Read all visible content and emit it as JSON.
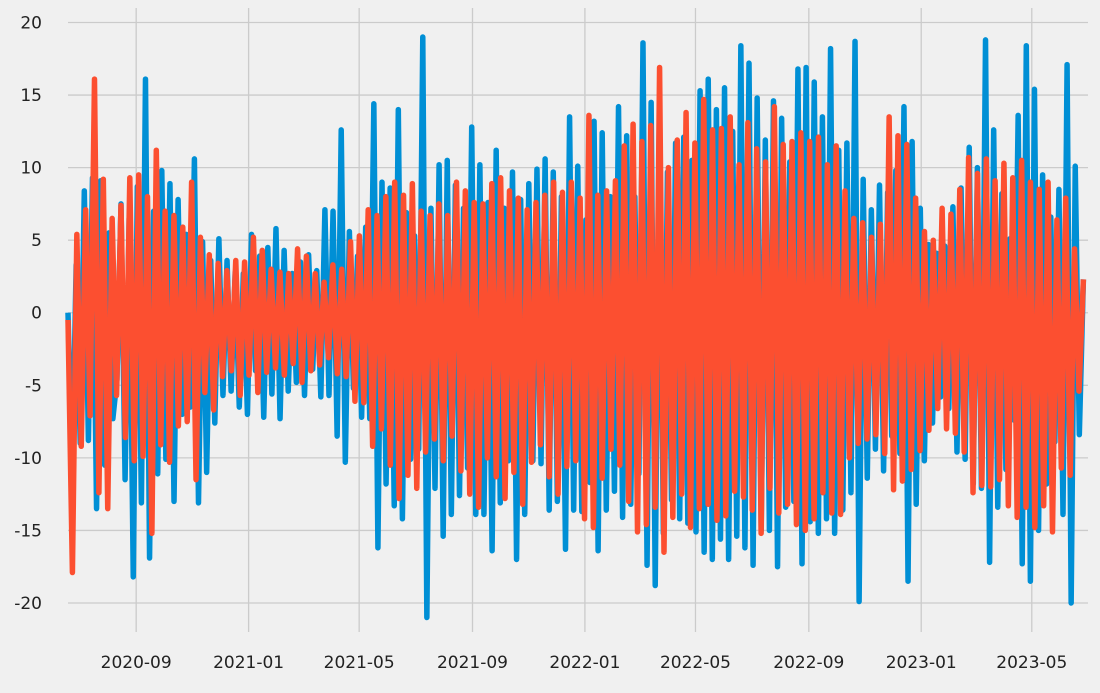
{
  "chart_data": {
    "type": "line",
    "title": "",
    "xlabel": "",
    "ylabel": "",
    "x_range": [
      "2020-06-19",
      "2023-07-01"
    ],
    "ylim": [
      -22.0,
      21.0
    ],
    "yticks": [
      20,
      15,
      10,
      5,
      0,
      -5,
      -10,
      -15,
      -20
    ],
    "ytick_labels": [
      "20",
      "15",
      "10",
      "5",
      "0",
      "-5",
      "-10",
      "-15",
      "-20"
    ],
    "xticks": [
      "2020-09-01",
      "2021-01-01",
      "2021-05-01",
      "2021-09-01",
      "2022-01-01",
      "2022-05-01",
      "2022-09-01",
      "2023-01-01",
      "2023-05-01"
    ],
    "xtick_labels": [
      "2020-09",
      "2021-01",
      "2021-05",
      "2021-09",
      "2022-01",
      "2022-05",
      "2022-09",
      "2023-01",
      "2023-05"
    ],
    "grid": true,
    "legend": "none",
    "series": [
      {
        "color": "#008fd5",
        "start": "2020-06-19",
        "end": "2023-06-26",
        "frequency": "daily",
        "values": [
          0.0,
          -11.5,
          3.3,
          -9.0,
          8.4,
          -8.8,
          9.3,
          -13.5,
          9.1,
          -10.5,
          5.5,
          -7.3,
          -4.6,
          7.5,
          -11.5,
          6.5,
          -18.2,
          8.7,
          -13.1,
          16.1,
          -16.9,
          7.0,
          -11.1,
          9.8,
          -10.1,
          8.9,
          -13.0,
          7.8,
          -7.0,
          5.4,
          -6.5,
          10.6,
          -13.1,
          4.9,
          -11.0,
          3.6,
          -7.6,
          5.1,
          -5.7,
          3.6,
          -5.4,
          2.8,
          -6.5,
          2.7,
          -7.0,
          5.4,
          -4.0,
          3.9,
          -7.2,
          4.5,
          -5.6,
          5.8,
          -7.3,
          4.3,
          -5.4,
          2.7,
          -4.8,
          3.5,
          -5.7,
          4.0,
          -3.9,
          2.9,
          -5.8,
          7.1,
          -5.7,
          7.0,
          -8.5,
          12.6,
          -10.3,
          5.6,
          -5.2,
          3.9,
          -7.2,
          5.9,
          -7.3,
          14.4,
          -16.2,
          9.0,
          -11.8,
          8.6,
          -13.3,
          14.0,
          -14.2,
          6.9,
          -10.1,
          5.3,
          -9.4,
          19.0,
          -21.0,
          7.2,
          -12.1,
          10.2,
          -15.4,
          10.5,
          -13.9,
          8.8,
          -12.6,
          7.2,
          -10.7,
          12.8,
          -13.9,
          10.2,
          -13.9,
          7.6,
          -16.4,
          11.2,
          -13.1,
          7.2,
          -10.2,
          9.7,
          -17.0,
          7.8,
          -13.9,
          8.9,
          -10.2,
          9.9,
          -10.4,
          10.6,
          -13.6,
          9.7,
          -13.0,
          8.0,
          -16.3,
          13.5,
          -13.6,
          10.1,
          -13.7,
          6.4,
          -11.7,
          13.2,
          -16.4,
          12.4,
          -13.6,
          8.0,
          -12.3,
          14.2,
          -14.1,
          12.2,
          -13.2,
          8.0,
          -11.1,
          18.6,
          -17.4,
          14.5,
          -18.8,
          12.9,
          -15.2,
          9.7,
          -12.9,
          11.7,
          -14.2,
          12.1,
          -14.5,
          10.5,
          -15.1,
          15.3,
          -16.5,
          16.1,
          -17.0,
          14.0,
          -15.6,
          15.5,
          -17.0,
          12.5,
          -15.4,
          18.4,
          -16.2,
          17.2,
          -17.4,
          14.8,
          -15.0,
          11.9,
          -15.0,
          14.6,
          -17.5,
          13.4,
          -13.4,
          10.4,
          -13.0,
          16.8,
          -17.3,
          16.9,
          -14.4,
          15.9,
          -15.2,
          13.5,
          -14.2,
          18.2,
          -15.2,
          11.2,
          -13.6,
          11.7,
          -12.4,
          18.7,
          -19.9,
          9.2,
          -11.4,
          7.1,
          -9.4,
          8.8,
          -10.9,
          8.3,
          -8.5,
          9.8,
          -9.7,
          14.2,
          -18.5,
          11.8,
          -13.2,
          7.2,
          -10.2,
          4.7,
          -7.6,
          4.1,
          -5.8,
          4.6,
          -6.6,
          7.3,
          -9.6,
          8.6,
          -10.1,
          11.4,
          -11.8,
          10.0,
          -12.1,
          18.8,
          -17.2,
          12.6,
          -13.4,
          8.2,
          -10.8,
          5.1,
          -7.4,
          13.6,
          -17.3,
          18.4,
          -18.5,
          15.4,
          -15.0,
          9.5,
          -11.8,
          6.6,
          -8.9,
          8.5,
          -13.9,
          17.1,
          -20.0,
          10.1,
          -8.4,
          2.3
        ]
      },
      {
        "color": "#fc4f30",
        "start": "2020-06-19",
        "end": "2023-06-26",
        "frequency": "daily",
        "values": [
          -0.5,
          -17.9,
          5.4,
          -9.2,
          7.1,
          -7.1,
          16.1,
          -12.4,
          9.2,
          -13.5,
          6.5,
          -5.7,
          7.4,
          -8.6,
          9.3,
          -10.2,
          9.5,
          -9.9,
          8.0,
          -15.2,
          11.2,
          -9.1,
          7.0,
          -10.3,
          6.7,
          -7.8,
          5.9,
          -7.5,
          9.0,
          -11.5,
          5.2,
          -5.5,
          4.0,
          -6.7,
          3.4,
          -4.4,
          2.9,
          -4.0,
          3.6,
          -5.7,
          3.5,
          -4.3,
          5.2,
          -5.5,
          4.3,
          -4.1,
          3.0,
          -3.8,
          2.8,
          -4.3,
          2.7,
          -3.5,
          4.4,
          -4.8,
          3.9,
          -4.0,
          2.7,
          -3.6,
          2.1,
          -3.1,
          3.3,
          -4.2,
          3.0,
          -4.4,
          4.9,
          -6.1,
          5.3,
          -6.2,
          7.1,
          -9.2,
          6.7,
          -8.0,
          8.0,
          -10.5,
          9.0,
          -12.8,
          8.1,
          -11.2,
          8.9,
          -12.1,
          7.0,
          -9.6,
          6.7,
          -8.7,
          7.5,
          -10.2,
          6.7,
          -8.5,
          9.0,
          -10.9,
          8.4,
          -12.5,
          7.6,
          -13.4,
          7.5,
          -10.0,
          8.9,
          -11.3,
          9.3,
          -12.8,
          8.4,
          -11.0,
          7.9,
          -13.2,
          7.1,
          -10.3,
          7.6,
          -9.1,
          8.1,
          -11.3,
          9.0,
          -12.5,
          8.3,
          -10.6,
          9.0,
          -10.2,
          7.9,
          -14.2,
          13.6,
          -14.8,
          8.1,
          -11.4,
          8.4,
          -9.4,
          9.1,
          -10.5,
          11.5,
          -13.0,
          13.0,
          -15.1,
          11.8,
          -14.6,
          12.9,
          -13.4,
          16.9,
          -16.5,
          10.0,
          -14.1,
          11.9,
          -12.5,
          13.8,
          -14.8,
          11.7,
          -13.5,
          14.7,
          -13.2,
          12.6,
          -14.3,
          12.7,
          -14.0,
          13.5,
          -12.3,
          10.2,
          -12.7,
          13.1,
          -13.6,
          11.3,
          -15.2,
          10.4,
          -12.1,
          14.2,
          -13.8,
          11.6,
          -13.2,
          11.8,
          -14.6,
          12.4,
          -15.0,
          11.8,
          -14.2,
          12.1,
          -12.4,
          10.2,
          -13.8,
          11.5,
          -13.9,
          8.4,
          -10.0,
          6.5,
          -9.0,
          6.2,
          -8.7,
          5.2,
          -8.4,
          6.1,
          -9.7,
          13.5,
          -12.2,
          12.2,
          -11.6,
          11.6,
          -10.8,
          7.9,
          -9.5,
          5.6,
          -8.1,
          5.0,
          -6.6,
          7.2,
          -8.0,
          6.8,
          -8.3,
          8.5,
          -9.6,
          10.7,
          -12.4,
          9.6,
          -11.9,
          10.6,
          -12.0,
          9.1,
          -11.5,
          10.3,
          -13.3,
          9.3,
          -14.1,
          10.5,
          -13.4,
          9.0,
          -14.8,
          8.5,
          -13.3,
          9.0,
          -15.1,
          6.4,
          -10.7,
          7.9,
          -11.2,
          4.4,
          -5.4,
          2.3
        ]
      }
    ]
  }
}
